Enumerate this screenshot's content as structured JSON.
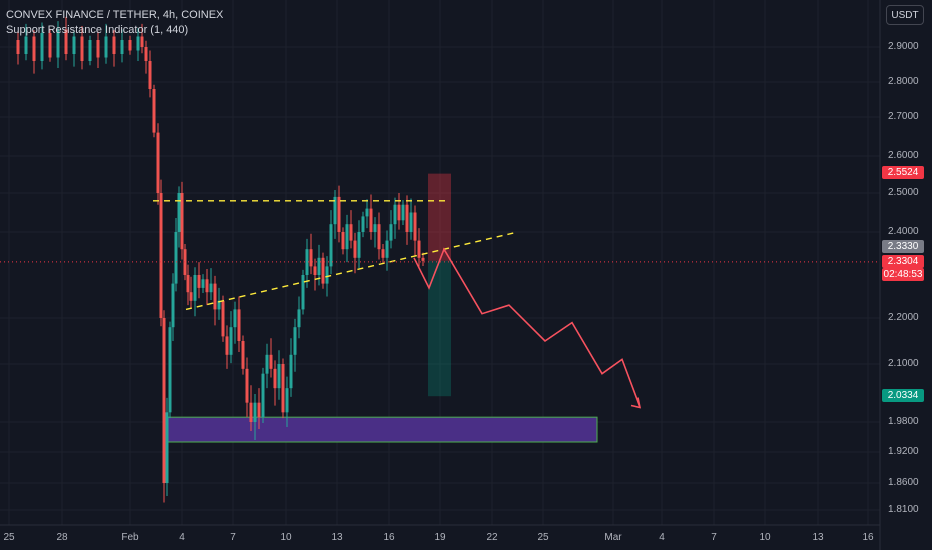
{
  "header": {
    "title": "CONVEX FINANCE / TETHER, 4h, COINEX",
    "indicator": "Support Resistance Indicator (1, 440)",
    "currency": "USDT"
  },
  "colors": {
    "background": "#131722",
    "up": "#26a69a",
    "down": "#ef5350",
    "resistance_line": "#ffeb3b",
    "projection": "#f7525f",
    "support_zone": "#4a2f86",
    "support_zone_border": "#4caf50"
  },
  "chart_data": {
    "type": "candlestick",
    "title": "CONVEX FINANCE / TETHER, 4h, COINEX",
    "ylabel": "USDT",
    "ylim": [
      1.79,
      2.98
    ],
    "y_ticks": [
      "2.9000",
      "2.8000",
      "2.7000",
      "2.6000",
      "2.5000",
      "2.4000",
      "2.2000",
      "2.1000",
      "1.9800",
      "1.9200",
      "1.8600",
      "1.8100"
    ],
    "x_ticks": [
      "25",
      "28",
      "Feb",
      "4",
      "7",
      "10",
      "13",
      "16",
      "19",
      "22",
      "25",
      "Mar",
      "4",
      "7",
      "10",
      "13",
      "16"
    ],
    "last_price": "2.3304",
    "countdown": "02:48:53",
    "price_labels": {
      "target_top": "2.5524",
      "entry": "2.3330",
      "target_bottom": "2.0334"
    },
    "candles_sample": [
      {
        "o": 2.95,
        "h": 2.98,
        "l": 2.88,
        "c": 2.9
      },
      {
        "o": 2.9,
        "h": 2.96,
        "l": 2.86,
        "c": 2.93
      },
      {
        "o": 2.93,
        "h": 2.97,
        "l": 2.87,
        "c": 2.88
      },
      {
        "o": 2.88,
        "h": 2.94,
        "l": 2.8,
        "c": 2.84
      },
      {
        "o": 2.84,
        "h": 2.86,
        "l": 2.62,
        "c": 2.66
      },
      {
        "o": 2.66,
        "h": 2.68,
        "l": 1.8,
        "c": 2.02
      },
      {
        "o": 2.02,
        "h": 2.54,
        "l": 2.0,
        "c": 2.4
      },
      {
        "o": 2.4,
        "h": 2.46,
        "l": 2.26,
        "c": 2.3
      },
      {
        "o": 2.3,
        "h": 2.33,
        "l": 2.14,
        "c": 2.16
      },
      {
        "o": 2.16,
        "h": 2.22,
        "l": 1.96,
        "c": 2.0
      },
      {
        "o": 2.0,
        "h": 2.16,
        "l": 1.96,
        "c": 2.12
      },
      {
        "o": 2.12,
        "h": 2.32,
        "l": 2.1,
        "c": 2.3
      },
      {
        "o": 2.3,
        "h": 2.52,
        "l": 2.28,
        "c": 2.44
      },
      {
        "o": 2.44,
        "h": 2.5,
        "l": 2.34,
        "c": 2.38
      },
      {
        "o": 2.38,
        "h": 2.5,
        "l": 2.33,
        "c": 2.46
      },
      {
        "o": 2.46,
        "h": 2.5,
        "l": 2.33,
        "c": 2.33
      }
    ],
    "resistance_level": 2.48,
    "trendline": {
      "from": 2.22,
      "to": 2.4
    },
    "support_zone": {
      "top": 1.99,
      "bottom": 1.94
    },
    "projection_path": [
      2.33,
      2.27,
      2.36,
      2.21,
      2.23,
      2.19,
      2.19,
      2.1,
      2.14,
      2.05,
      2.07,
      2.02,
      2.05,
      2.01
    ]
  }
}
